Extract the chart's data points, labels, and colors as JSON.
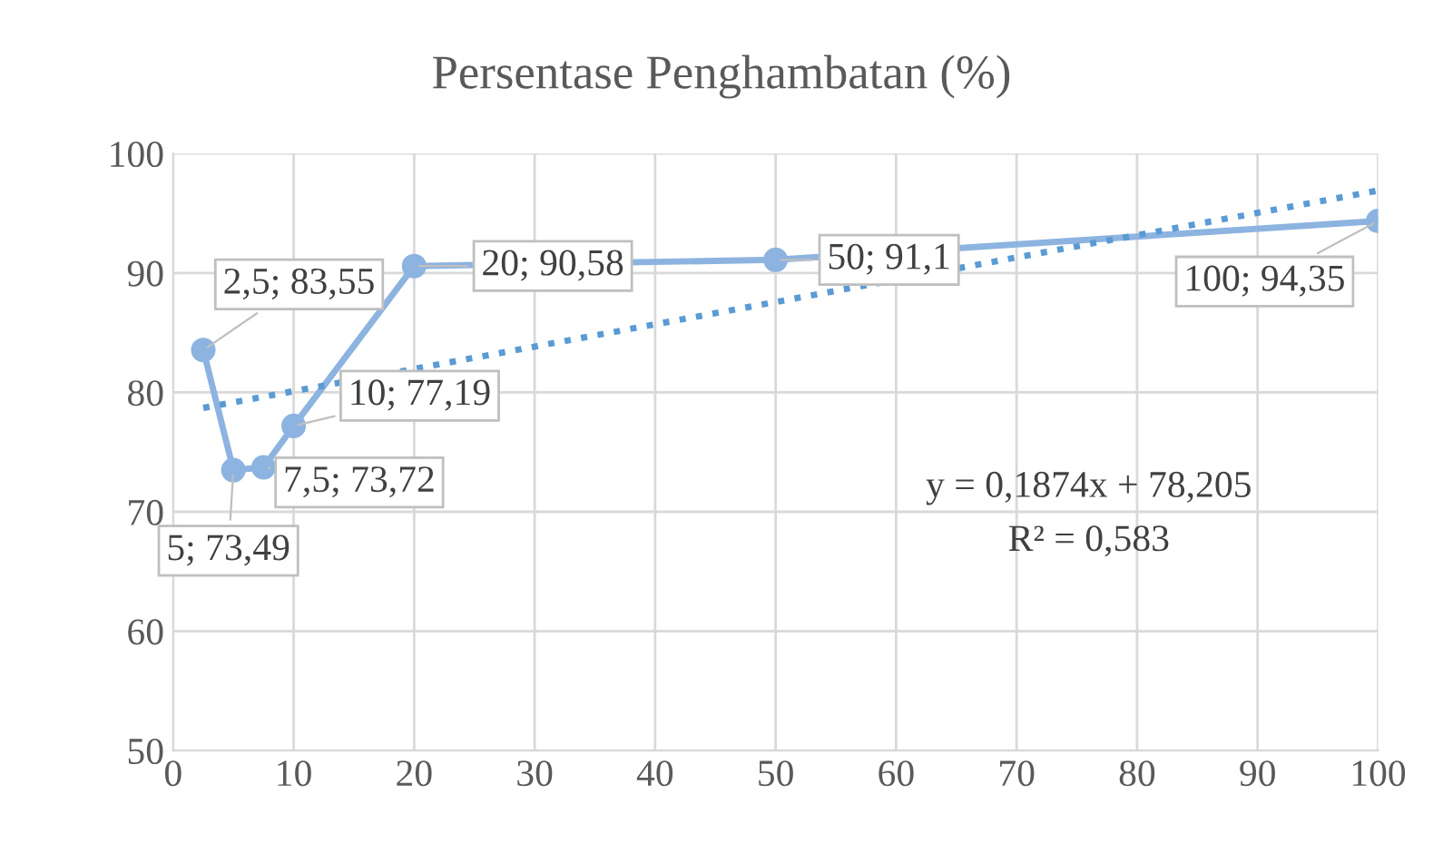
{
  "chart_data": {
    "type": "line",
    "title": "Persentase Penghambatan (%)",
    "x": [
      2.5,
      5,
      7.5,
      10,
      20,
      50,
      100
    ],
    "series": [
      {
        "color": "#8db4e0",
        "values": [
          83.55,
          73.49,
          73.72,
          77.19,
          90.58,
          91.1,
          94.35
        ],
        "value_labels": [
          "2,5; 83,55",
          "5; 73,49",
          "7,5; 73,72",
          "10; 77,19",
          "20; 90,58",
          "50; 91,1",
          "100; 94,35"
        ],
        "marker": "circle",
        "line_style": "solid"
      },
      {
        "type": "line",
        "color": "#5b9bd5",
        "x": [
          2.5,
          100
        ],
        "values": [
          78.7,
          96.9
        ],
        "marker": "none",
        "line_style": "dotted"
      }
    ],
    "xlim": [
      0,
      100
    ],
    "xticks": [
      0,
      10,
      20,
      30,
      40,
      50,
      60,
      70,
      80,
      90,
      100
    ],
    "ylim": [
      50,
      100
    ],
    "yticks": [
      50,
      60,
      70,
      80,
      90,
      100
    ],
    "grid": true,
    "legend": false,
    "annotations": [
      "y = 0,1874x + 78,205",
      "R² = 0,583"
    ]
  }
}
